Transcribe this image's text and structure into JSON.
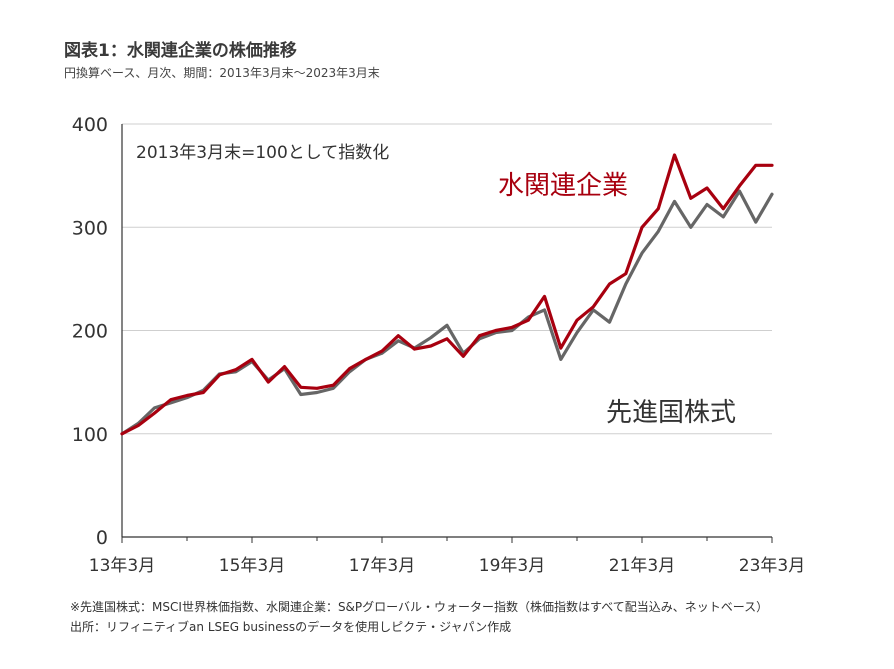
{
  "header": {
    "title": "図表1：水関連企業の株価推移",
    "subtitle": "円換算ベース、月次、期間：2013年3月末～2023年3月末"
  },
  "footnotes": {
    "line1": "※先進国株式：MSCI世界株価指数、水関連企業：S&Pグローバル・ウォーター指数（株価指数はすべて配当込み、ネットベース）",
    "line2": "出所：リフィニティブan LSEG businessのデータを使用しピクテ・ジャパン作成"
  },
  "chart_data": {
    "type": "line",
    "annotation": "2013年3月末=100として指数化",
    "x_ticks": [
      "13年3月",
      "15年3月",
      "17年3月",
      "19年3月",
      "21年3月",
      "23年3月"
    ],
    "y_ticks": [
      "0",
      "100",
      "200",
      "300",
      "400"
    ],
    "ylim": [
      0,
      400
    ],
    "xlim": [
      2013.25,
      2023.25
    ],
    "grid": true,
    "legend_placement": "inline labels on lines",
    "colors": {
      "water": "#a8000f",
      "developed": "#666666"
    },
    "series": [
      {
        "name": "水関連企業",
        "x": [
          2013.25,
          2013.5,
          2013.75,
          2014.0,
          2014.25,
          2014.5,
          2014.75,
          2015.0,
          2015.25,
          2015.5,
          2015.75,
          2016.0,
          2016.25,
          2016.5,
          2016.75,
          2017.0,
          2017.25,
          2017.5,
          2017.75,
          2018.0,
          2018.25,
          2018.5,
          2018.75,
          2019.0,
          2019.25,
          2019.5,
          2019.75,
          2020.0,
          2020.25,
          2020.5,
          2020.75,
          2021.0,
          2021.25,
          2021.5,
          2021.75,
          2022.0,
          2022.25,
          2022.5,
          2022.75,
          2023.0,
          2023.25
        ],
        "values": [
          100,
          108,
          120,
          133,
          137,
          140,
          157,
          162,
          172,
          150,
          165,
          145,
          144,
          147,
          163,
          172,
          180,
          195,
          182,
          185,
          192,
          175,
          195,
          200,
          203,
          210,
          233,
          183,
          210,
          223,
          245,
          255,
          300,
          318,
          370,
          328,
          338,
          318,
          340,
          360,
          360
        ]
      },
      {
        "name": "先進国株式",
        "x": [
          2013.25,
          2013.5,
          2013.75,
          2014.0,
          2014.25,
          2014.5,
          2014.75,
          2015.0,
          2015.25,
          2015.5,
          2015.75,
          2016.0,
          2016.25,
          2016.5,
          2016.75,
          2017.0,
          2017.25,
          2017.5,
          2017.75,
          2018.0,
          2018.25,
          2018.5,
          2018.75,
          2019.0,
          2019.25,
          2019.5,
          2019.75,
          2020.0,
          2020.25,
          2020.5,
          2020.75,
          2021.0,
          2021.25,
          2021.5,
          2021.75,
          2022.0,
          2022.25,
          2022.5,
          2022.75,
          2023.0,
          2023.25
        ],
        "values": [
          100,
          110,
          125,
          130,
          135,
          142,
          158,
          160,
          170,
          152,
          163,
          138,
          140,
          144,
          160,
          172,
          178,
          190,
          183,
          193,
          205,
          178,
          192,
          198,
          200,
          213,
          220,
          172,
          198,
          220,
          208,
          245,
          275,
          296,
          325,
          300,
          322,
          310,
          335,
          305,
          332
        ]
      }
    ]
  }
}
